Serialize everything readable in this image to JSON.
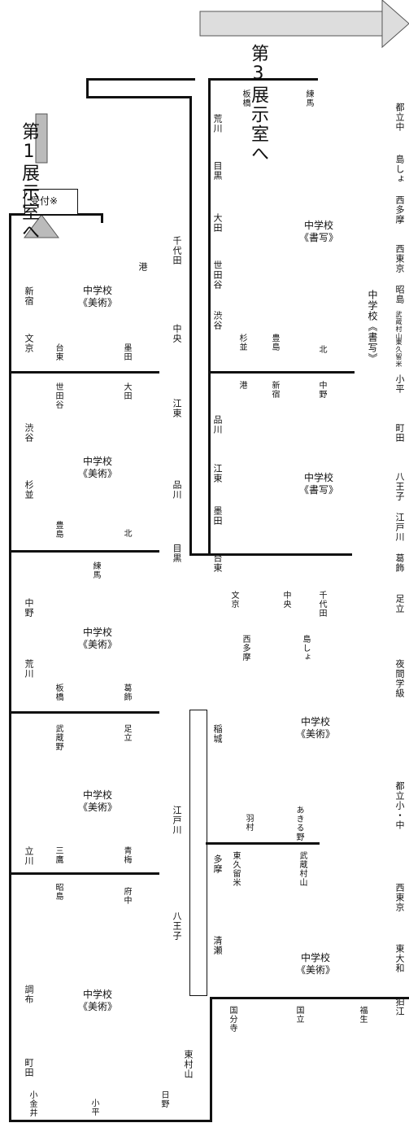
{
  "directions": {
    "exhibit1": "第1展示室へ",
    "exhibit3": "第3展示室へ"
  },
  "reception": "受付※",
  "left_column": {
    "rooms": [
      {
        "section": "中学校\n《美術》",
        "labels": [
          "港",
          "新宿",
          "文京",
          "台東",
          "墨田"
        ]
      },
      {
        "section": "中学校\n《美術》",
        "labels": [
          "世田谷",
          "大田",
          "渋谷",
          "杉並",
          "豊島",
          "北"
        ]
      },
      {
        "section": "中学校\n《美術》",
        "labels": [
          "練馬",
          "中野",
          "荒川",
          "板橋",
          "葛飾"
        ]
      },
      {
        "section": "中学校\n《美術》",
        "labels": [
          "武蔵野",
          "足立",
          "立川",
          "三鷹",
          "青梅"
        ]
      },
      {
        "section": "中学校\n《美術》",
        "labels": [
          "昭島",
          "府中",
          "調布",
          "町田",
          "小金井",
          "小平",
          "日野",
          "東村山"
        ]
      }
    ]
  },
  "center_spine": [
    "千代田",
    "中央",
    "江東",
    "品川",
    "目黒"
  ],
  "center_room_calligraphy_top": {
    "section": "中学校\n《書写》",
    "labels": [
      "板橋",
      "練馬",
      "荒川",
      "目黒",
      "大田",
      "世田谷",
      "渋谷",
      "杉並",
      "豊島",
      "北",
      "港",
      "新宿",
      "中野"
    ]
  },
  "center_room_calligraphy_bottom": {
    "section": "中学校\n《書写》",
    "labels": [
      "品川",
      "江東",
      "墨田",
      "台東",
      "文京",
      "中央",
      "千代田",
      "西多摩",
      "島しょ"
    ]
  },
  "center_room_art": {
    "section": "中学校\n《美術》",
    "labels": [
      "稲城",
      "江戸川",
      "羽村",
      "あきる野",
      "多摩",
      "東久留米",
      "武蔵村山",
      "八王子",
      "清瀬"
    ]
  },
  "center_room_art2": {
    "section": "中学校\n《美術》",
    "labels": [
      "国分寺",
      "国立",
      "福生"
    ]
  },
  "right_column": {
    "calligraphy_label": "中学校《書写》",
    "items": [
      "都立中",
      "島しょ",
      "西多摩",
      "西東京",
      "昭島",
      "武蔵村山",
      "東久留米",
      "小平",
      "町田",
      "八王子",
      "江戸川",
      "葛飾",
      "足立",
      "夜間学級",
      "都立小・中",
      "西東京",
      "東大和",
      "狛江"
    ]
  }
}
